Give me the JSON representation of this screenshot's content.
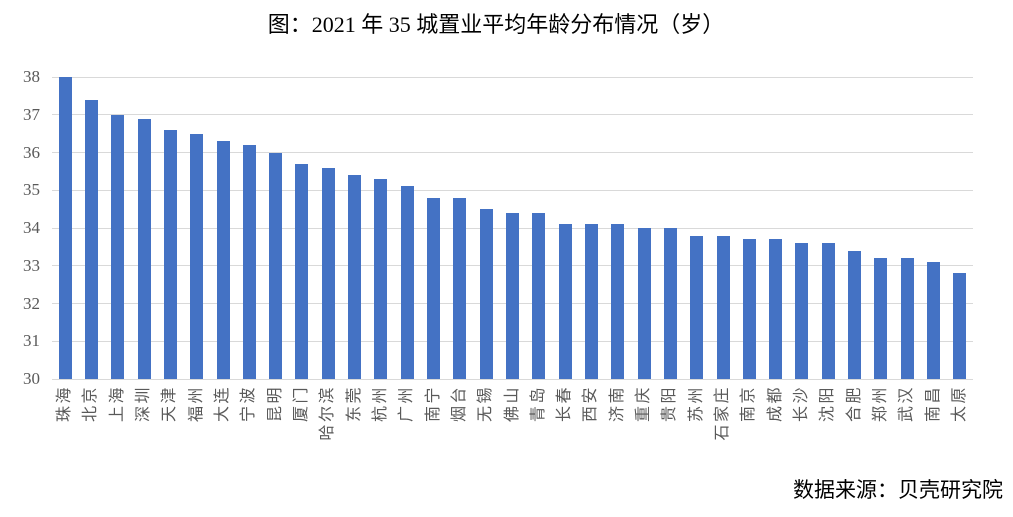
{
  "title": "图：2021 年 35 城置业平均年龄分布情况（岁）",
  "source": "数据来源：贝壳研究院",
  "chart_data": {
    "type": "bar",
    "title": "图：2021 年 35 城置业平均年龄分布情况（岁）",
    "categories": [
      "珠海",
      "北京",
      "上海",
      "深圳",
      "天津",
      "福州",
      "大连",
      "宁波",
      "昆明",
      "厦门",
      "哈尔滨",
      "东莞",
      "杭州",
      "广州",
      "南宁",
      "烟台",
      "无锡",
      "佛山",
      "青岛",
      "长春",
      "西安",
      "济南",
      "重庆",
      "贵阳",
      "苏州",
      "石家庄",
      "南京",
      "成都",
      "长沙",
      "沈阳",
      "合肥",
      "郑州",
      "武汉",
      "南昌",
      "太原"
    ],
    "values": [
      38.0,
      37.4,
      37.0,
      36.9,
      36.6,
      36.5,
      36.3,
      36.2,
      36.0,
      35.7,
      35.6,
      35.4,
      35.3,
      35.1,
      34.8,
      34.8,
      34.5,
      34.4,
      34.4,
      34.1,
      34.1,
      34.1,
      34.0,
      34.0,
      33.8,
      33.8,
      33.7,
      33.7,
      33.6,
      33.6,
      33.4,
      33.2,
      33.2,
      33.1,
      32.8
    ],
    "xlabel": "",
    "ylabel": "",
    "ylim": [
      30,
      38
    ],
    "ytick_step": 1,
    "yticks": [
      30,
      31,
      32,
      33,
      34,
      35,
      36,
      37,
      38
    ],
    "grid": true,
    "legend": false,
    "bar_color": "#4472C4",
    "gridline_color": "#D9D9D9",
    "axis_text_color": "#595959",
    "source_note": "数据来源：贝壳研究院"
  }
}
